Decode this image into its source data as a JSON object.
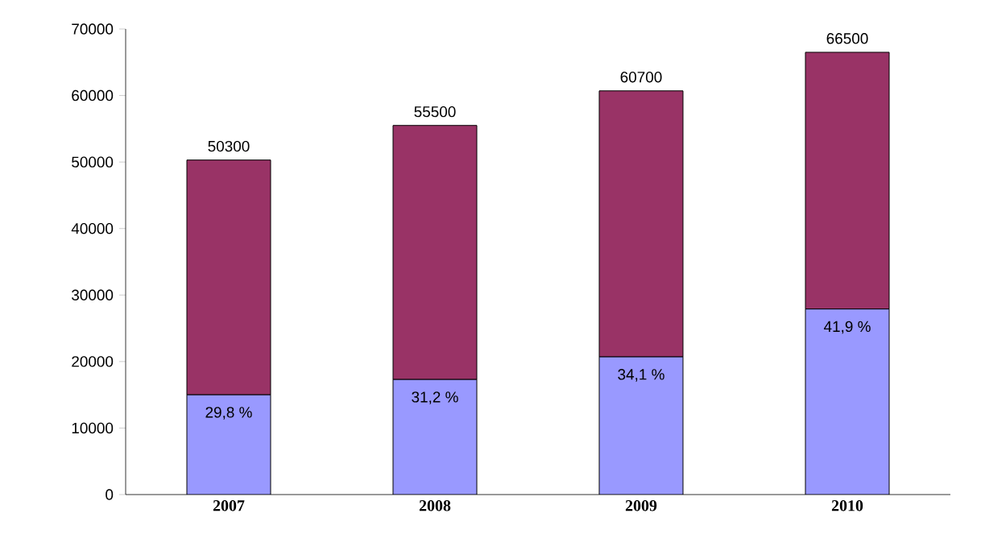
{
  "chart_data": {
    "type": "bar",
    "stacked": true,
    "categories": [
      "2007",
      "2008",
      "2009",
      "2010"
    ],
    "series": [
      {
        "color": "#9999ff",
        "values": [
          15000,
          17300,
          20700,
          27900
        ]
      },
      {
        "color": "#993366",
        "values": [
          35300,
          38200,
          40000,
          38600
        ]
      }
    ],
    "totals": [
      "50300",
      "55500",
      "60700",
      "66500"
    ],
    "annotations": [
      {
        "text": "29,8 %",
        "x": "2007",
        "y": 15000
      },
      {
        "text": "31,2 %",
        "x": "2008",
        "y": 17300
      },
      {
        "text": "34,1 %",
        "x": "2009",
        "y": 20700
      },
      {
        "text": "41,9 %",
        "x": "2010",
        "y": 27900
      }
    ],
    "ylim": [
      0,
      70000
    ],
    "yticks": [
      0,
      10000,
      20000,
      30000,
      40000,
      50000,
      60000,
      70000
    ],
    "grid": false
  }
}
